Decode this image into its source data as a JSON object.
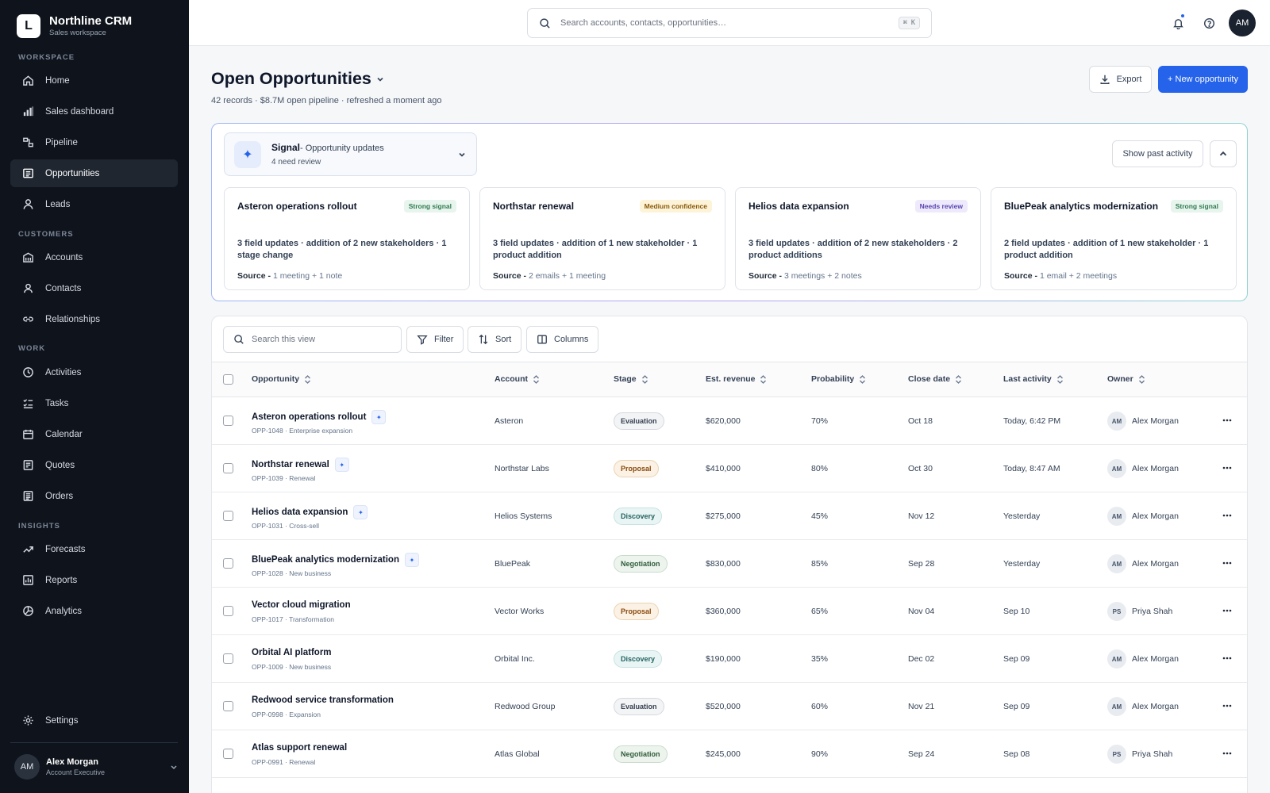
{
  "app": {
    "name": "Northline CRM",
    "workspace": "Sales workspace",
    "logo_letter": "L"
  },
  "sidebar": {
    "sections": [
      {
        "label": "WORKSPACE"
      },
      {
        "label": "CUSTOMERS"
      },
      {
        "label": "WORK"
      },
      {
        "label": "INSIGHTS"
      }
    ],
    "items": [
      {
        "label": "Home",
        "icon": "home-icon"
      },
      {
        "label": "Sales dashboard",
        "icon": "bar-chart-icon"
      },
      {
        "label": "Pipeline",
        "icon": "pipeline-icon"
      },
      {
        "label": "Opportunities",
        "icon": "list-icon",
        "active": true
      },
      {
        "label": "Leads",
        "icon": "person-icon"
      },
      {
        "label": "Accounts",
        "icon": "building-icon"
      },
      {
        "label": "Contacts",
        "icon": "contact-icon"
      },
      {
        "label": "Relationships",
        "icon": "link-icon"
      },
      {
        "label": "Activities",
        "icon": "clock-icon"
      },
      {
        "label": "Tasks",
        "icon": "checklist-icon"
      },
      {
        "label": "Calendar",
        "icon": "calendar-icon"
      },
      {
        "label": "Quotes",
        "icon": "document-icon"
      },
      {
        "label": "Orders",
        "icon": "receipt-icon"
      },
      {
        "label": "Forecasts",
        "icon": "trend-icon"
      },
      {
        "label": "Reports",
        "icon": "report-icon"
      },
      {
        "label": "Analytics",
        "icon": "pie-icon"
      }
    ],
    "settings_label": "Settings",
    "user": {
      "initials": "AM",
      "name": "Alex Morgan",
      "role": "Account Executive"
    }
  },
  "topbar": {
    "search_placeholder": "Search accounts, contacts, opportunities…",
    "shortcut": "⌘ K",
    "avatar_initials": "AM"
  },
  "page": {
    "title": "Open Opportunities",
    "subtitle": "42 records · $8.7M open pipeline · refreshed a moment ago",
    "export_label": "Export",
    "new_label": "+ New opportunity"
  },
  "signal": {
    "title": "Signal",
    "title_suffix": "- Opportunity updates",
    "count": "4 need review",
    "show_past_label": "Show past activity",
    "cards": [
      {
        "title": "Asteron operations rollout",
        "badge": "Strong signal",
        "badge_tone": "green",
        "summary": "3 field updates · addition of 2 new stakeholders · 1 stage change",
        "source_label": "Source -",
        "source": "1 meeting + 1 note"
      },
      {
        "title": "Northstar renewal",
        "badge": "Medium confidence",
        "badge_tone": "amber",
        "summary": "3 field updates · addition of 1 new stakeholder · 1 product addition",
        "source_label": "Source -",
        "source": "2 emails + 1 meeting"
      },
      {
        "title": "Helios data expansion",
        "badge": "Needs review",
        "badge_tone": "purple",
        "summary": "3 field updates · addition of 2 new stakeholders · 2 product additions",
        "source_label": "Source -",
        "source": "3 meetings + 2 notes"
      },
      {
        "title": "BluePeak analytics modernization",
        "badge": "Strong signal",
        "badge_tone": "green",
        "summary": "2 field updates · addition of 1 new stakeholder · 1 product addition",
        "source_label": "Source -",
        "source": "1 email + 2 meetings"
      }
    ]
  },
  "table": {
    "search_placeholder": "Search this view",
    "filter_label": "Filter",
    "sort_label": "Sort",
    "columns_label": "Columns",
    "headers": [
      "Opportunity",
      "Account",
      "Stage",
      "Est. revenue",
      "Probability",
      "Close date",
      "Last activity",
      "Owner"
    ],
    "rows": [
      {
        "name": "Asteron operations rollout",
        "meta": "OPP-1048 · Enterprise expansion",
        "signal": true,
        "account": "Asteron",
        "stage": "Evaluation",
        "stage_tone": "eval",
        "revenue": "$620,000",
        "probability": "70%",
        "close": "Oct 18",
        "last": "Today, 6:42 PM",
        "owner_initials": "AM",
        "owner": "Alex Morgan"
      },
      {
        "name": "Northstar renewal",
        "meta": "OPP-1039 · Renewal",
        "signal": true,
        "account": "Northstar Labs",
        "stage": "Proposal",
        "stage_tone": "prop",
        "revenue": "$410,000",
        "probability": "80%",
        "close": "Oct 30",
        "last": "Today, 8:47 AM",
        "owner_initials": "AM",
        "owner": "Alex Morgan"
      },
      {
        "name": "Helios data expansion",
        "meta": "OPP-1031 · Cross-sell",
        "signal": true,
        "account": "Helios Systems",
        "stage": "Discovery",
        "stage_tone": "disc",
        "revenue": "$275,000",
        "probability": "45%",
        "close": "Nov 12",
        "last": "Yesterday",
        "owner_initials": "AM",
        "owner": "Alex Morgan"
      },
      {
        "name": "BluePeak analytics modernization",
        "meta": "OPP-1028 · New business",
        "signal": true,
        "account": "BluePeak",
        "stage": "Negotiation",
        "stage_tone": "nego",
        "revenue": "$830,000",
        "probability": "85%",
        "close": "Sep 28",
        "last": "Yesterday",
        "owner_initials": "AM",
        "owner": "Alex Morgan"
      },
      {
        "name": "Vector cloud migration",
        "meta": "OPP-1017 · Transformation",
        "signal": false,
        "account": "Vector Works",
        "stage": "Proposal",
        "stage_tone": "prop",
        "revenue": "$360,000",
        "probability": "65%",
        "close": "Nov 04",
        "last": "Sep 10",
        "owner_initials": "PS",
        "owner": "Priya Shah"
      },
      {
        "name": "Orbital AI platform",
        "meta": "OPP-1009 · New business",
        "signal": false,
        "account": "Orbital Inc.",
        "stage": "Discovery",
        "stage_tone": "disc",
        "revenue": "$190,000",
        "probability": "35%",
        "close": "Dec 02",
        "last": "Sep 09",
        "owner_initials": "AM",
        "owner": "Alex Morgan"
      },
      {
        "name": "Redwood service transformation",
        "meta": "OPP-0998 · Expansion",
        "signal": false,
        "account": "Redwood Group",
        "stage": "Evaluation",
        "stage_tone": "eval",
        "revenue": "$520,000",
        "probability": "60%",
        "close": "Nov 21",
        "last": "Sep 09",
        "owner_initials": "AM",
        "owner": "Alex Morgan"
      },
      {
        "name": "Atlas support renewal",
        "meta": "OPP-0991 · Renewal",
        "signal": false,
        "account": "Atlas Global",
        "stage": "Negotiation",
        "stage_tone": "nego",
        "revenue": "$245,000",
        "probability": "90%",
        "close": "Sep 24",
        "last": "Sep 08",
        "owner_initials": "PS",
        "owner": "Priya Shah"
      }
    ]
  },
  "colors": {
    "accent": "#2563eb",
    "sidebar_bg": "#0f141c"
  }
}
